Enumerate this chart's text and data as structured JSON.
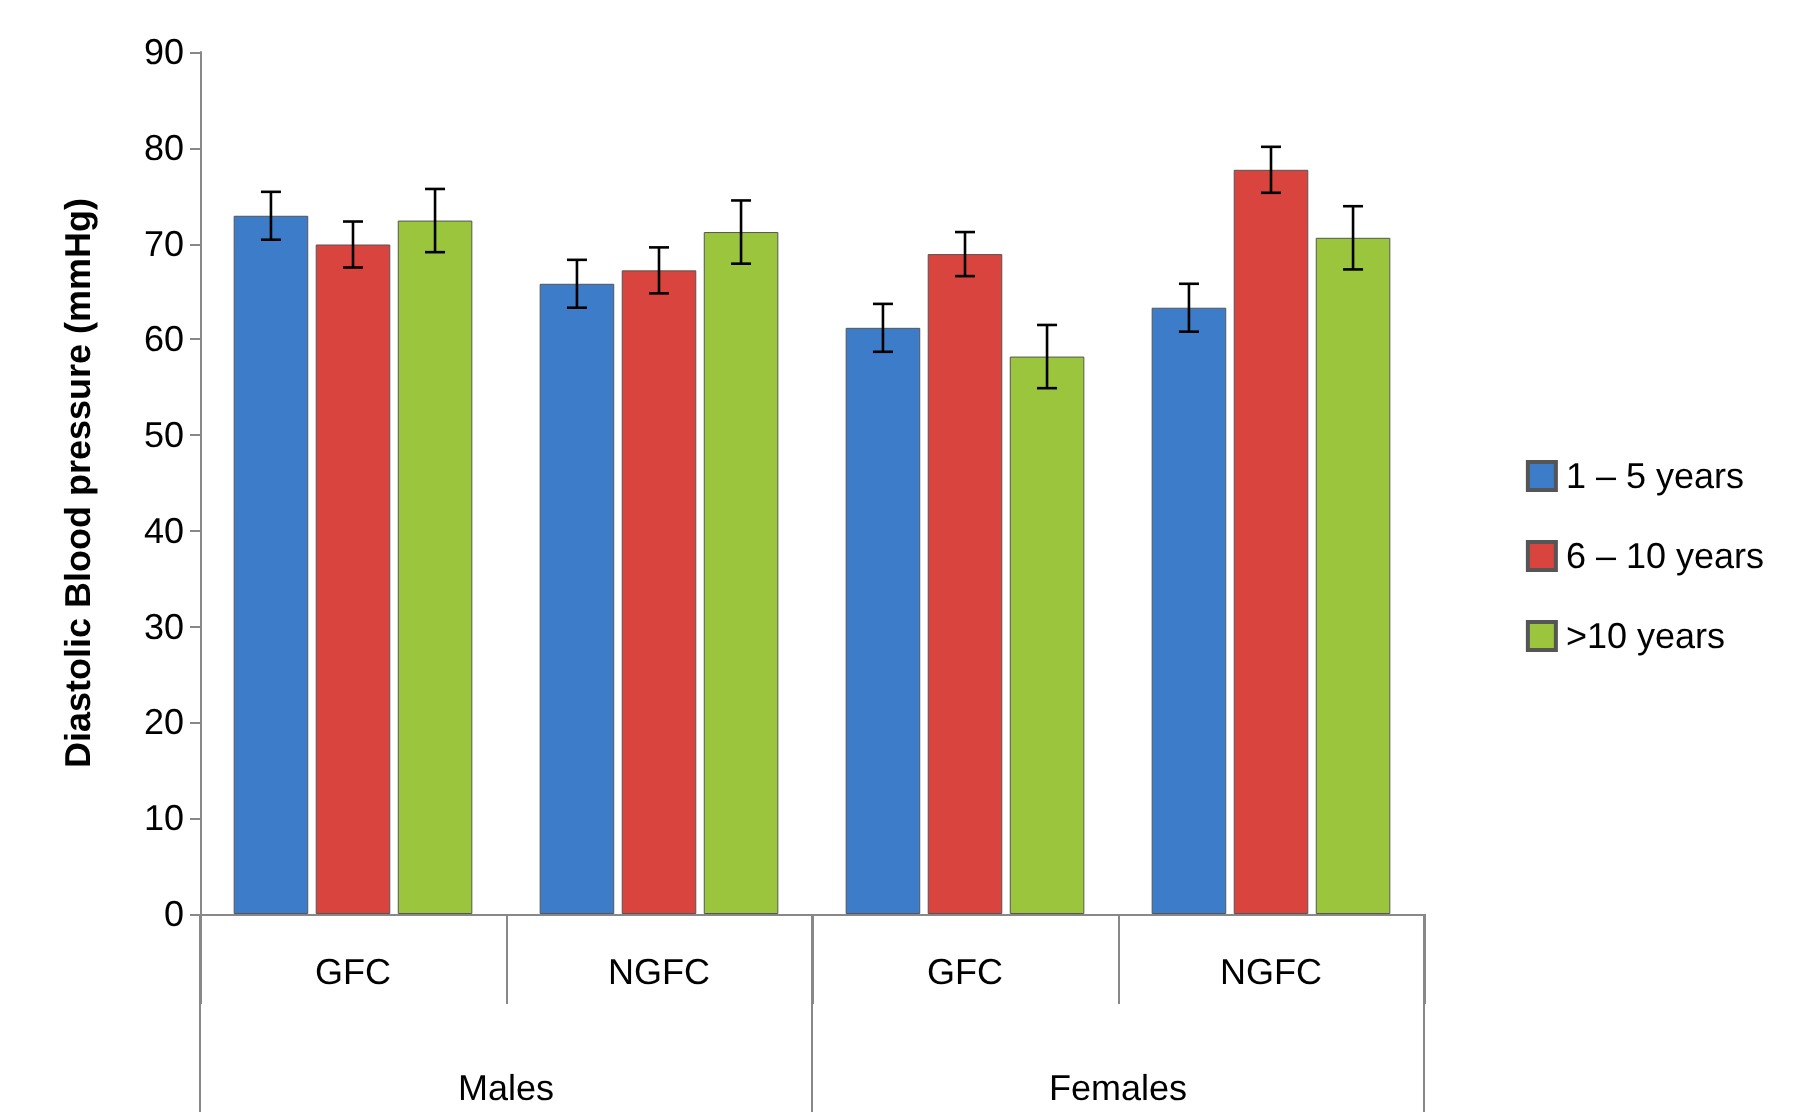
{
  "chart_data": {
    "type": "bar",
    "ylabel": "Diastolic Blood pressure (mmHg)",
    "categories": [
      "GFC",
      "NGFC",
      "GFC",
      "NGFC"
    ],
    "annotations": [
      "Males",
      "Females"
    ],
    "series": [
      {
        "name": "1 – 5 years",
        "color": "#3d7cc9",
        "values": [
          72.9,
          65.8,
          61.2,
          63.3
        ],
        "errors": [
          2.5,
          2.5,
          2.5,
          2.5
        ]
      },
      {
        "name": "6 – 10 years",
        "color": "#d9443f",
        "values": [
          69.9,
          67.2,
          68.9,
          77.7
        ],
        "errors": [
          2.4,
          2.4,
          2.3,
          2.4
        ]
      },
      {
        "name": ">10 years",
        "color": "#9bc53d",
        "values": [
          72.4,
          71.2,
          58.2,
          70.6
        ],
        "errors": [
          3.3,
          3.3,
          3.3,
          3.3
        ]
      }
    ],
    "ylim": [
      0,
      90
    ],
    "yticks": [
      0,
      10,
      20,
      30,
      40,
      50,
      60,
      70,
      80,
      90
    ],
    "grid": false,
    "legend": "right"
  }
}
